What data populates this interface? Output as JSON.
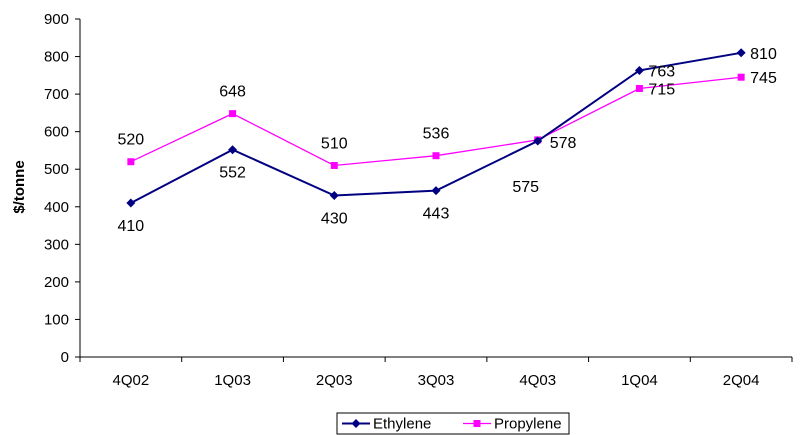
{
  "chart_data": {
    "type": "line",
    "title": "",
    "xlabel": "",
    "ylabel": "$/tonne",
    "ylim": [
      0,
      900
    ],
    "yticks": [
      "0",
      "100",
      "200",
      "300",
      "400",
      "500",
      "600",
      "700",
      "800",
      "900"
    ],
    "categories": [
      "4Q02",
      "1Q03",
      "2Q03",
      "3Q03",
      "4Q03",
      "1Q04",
      "2Q04"
    ],
    "grid": false,
    "legend_position": "bottom",
    "series": [
      {
        "name": "Ethylene",
        "color": "#000080",
        "marker": "diamond",
        "values": [
          410,
          552,
          430,
          443,
          575,
          763,
          810
        ],
        "labels": [
          "410",
          "552",
          "430",
          "443",
          "575",
          "763",
          "810"
        ]
      },
      {
        "name": "Propylene",
        "color": "#FF00FF",
        "marker": "square",
        "values": [
          520,
          648,
          510,
          536,
          578,
          715,
          745
        ],
        "labels": [
          "520",
          "648",
          "510",
          "536",
          "578",
          "715",
          "745"
        ]
      }
    ]
  }
}
